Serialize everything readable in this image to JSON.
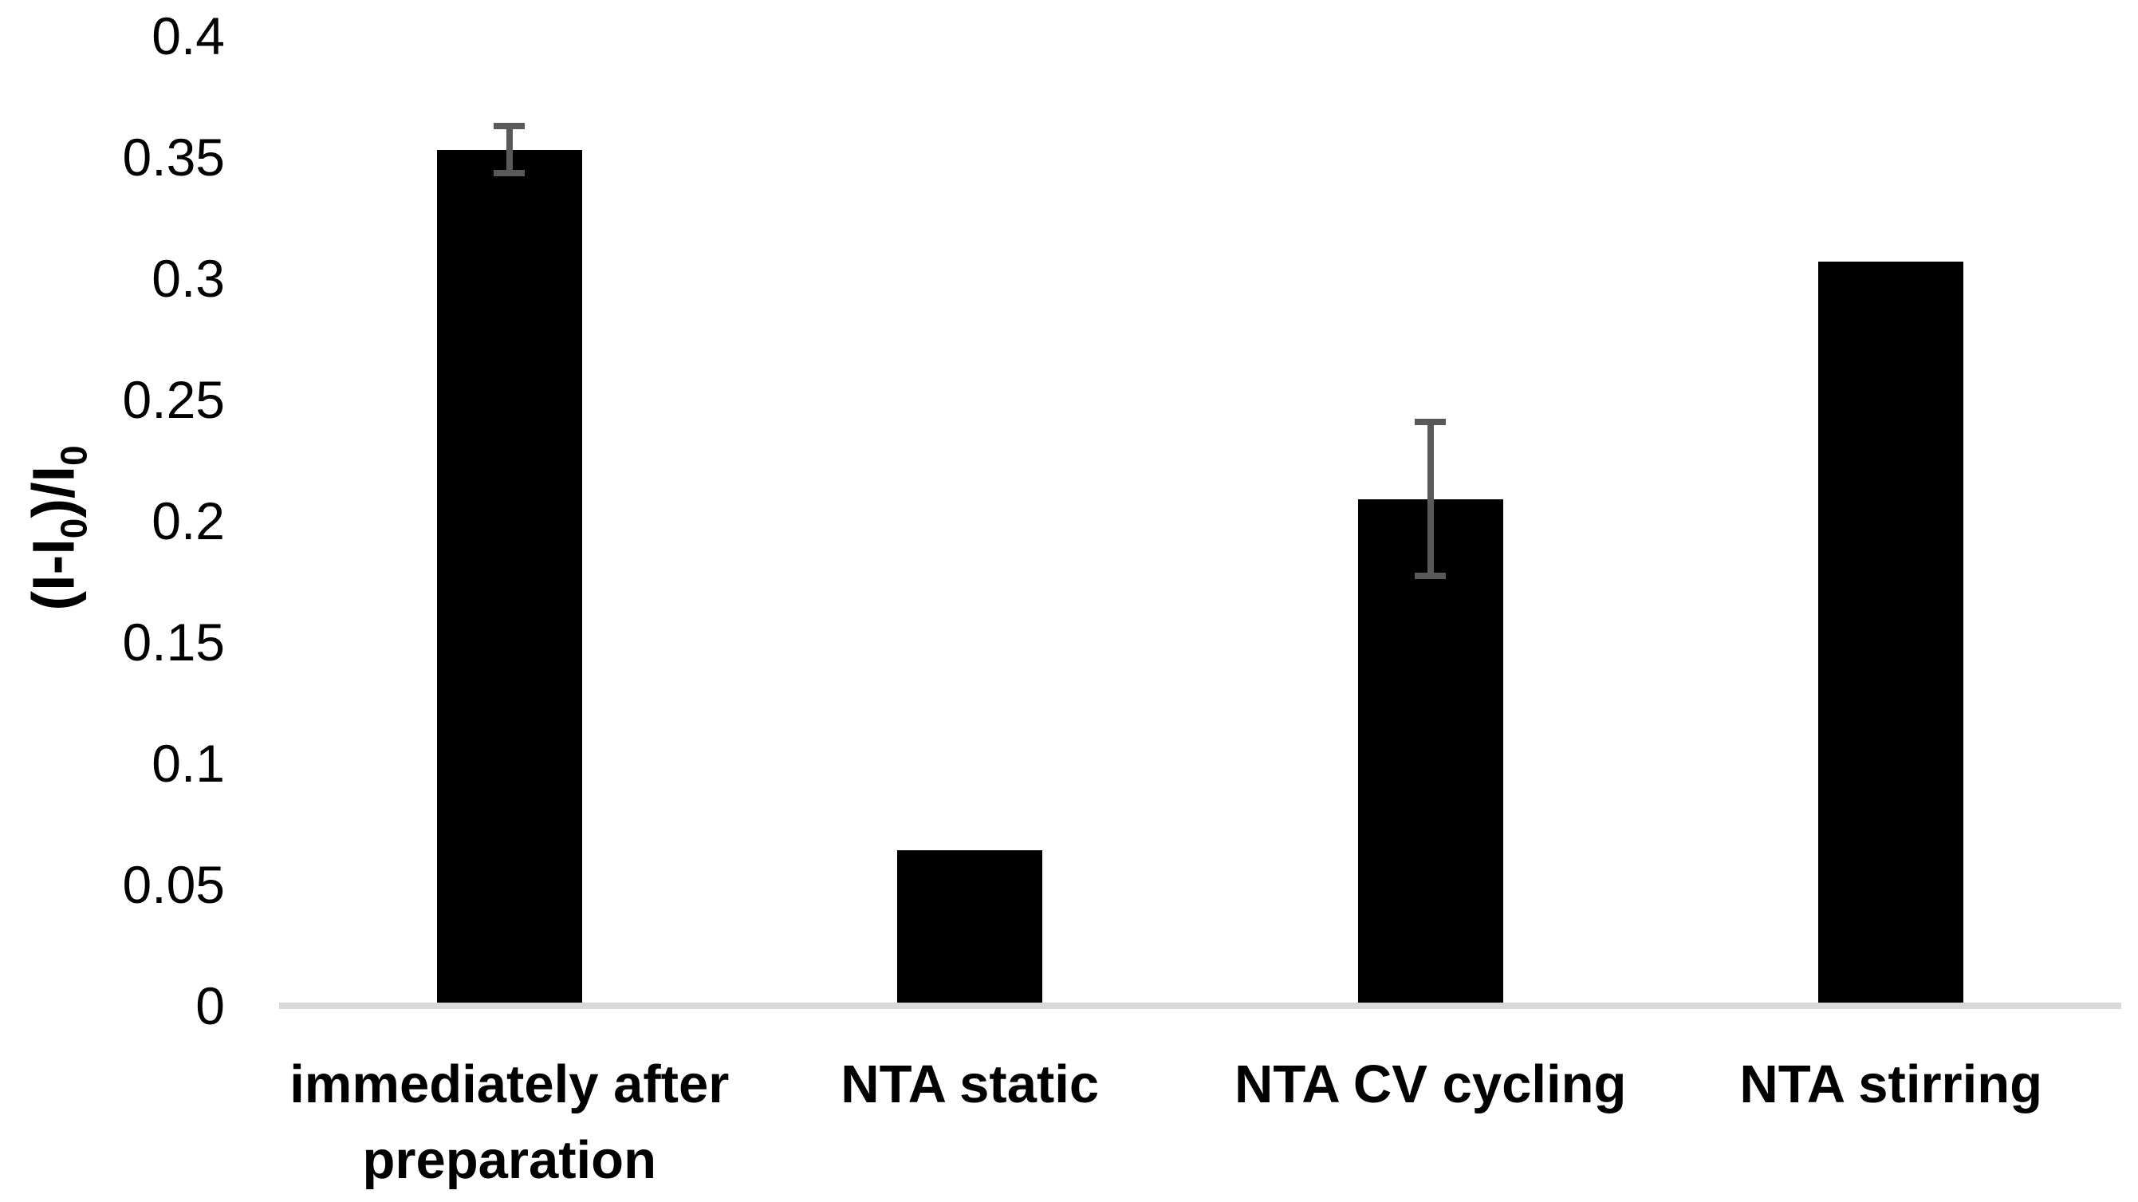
{
  "chart_data": {
    "type": "bar",
    "title": "",
    "categories": [
      "immediately after preparation",
      "NTA static",
      "NTA CV cycling",
      "NTA stirring"
    ],
    "values": [
      0.353,
      0.064,
      0.209,
      0.307
    ],
    "errors": [
      0.011,
      null,
      0.033,
      null
    ],
    "ylabel": "(I-I0)/I0",
    "ylabel_parts": [
      [
        "text",
        "(I-I"
      ],
      [
        "sub",
        "0"
      ],
      [
        "text",
        ")/I"
      ],
      [
        "sub",
        "0"
      ]
    ],
    "ylim": [
      0,
      0.4
    ],
    "ytick_step": 0.05,
    "ytick_labels": [
      "0",
      "0.05",
      "0.1",
      "0.15",
      "0.2",
      "0.25",
      "0.3",
      "0.35",
      "0.4"
    ],
    "grid": false,
    "legend": false,
    "xlabel": "",
    "colors": {
      "bar": "#000000",
      "error_bar": "#595959",
      "axis_line": "#d9d9d9",
      "text": "#000000",
      "background": "#ffffff"
    }
  }
}
